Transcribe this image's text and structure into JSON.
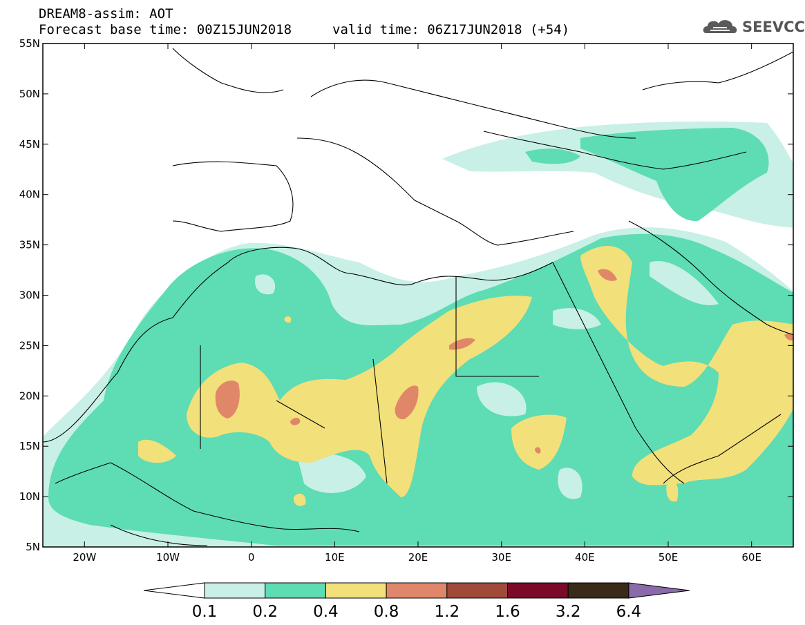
{
  "header": {
    "title_line1": "DREAM8-assim: AOT",
    "title_line2_base": "Forecast base time: 00Z15JUN2018",
    "title_line2_valid": "valid time: 06Z17JUN2018 (+54)"
  },
  "logo": {
    "text": "SEEVCCC",
    "icon": "cloud-icon"
  },
  "map": {
    "lat_labels": [
      "55N",
      "50N",
      "45N",
      "40N",
      "35N",
      "30N",
      "25N",
      "20N",
      "15N",
      "10N",
      "5N"
    ],
    "lon_labels": [
      "20W",
      "10W",
      "0",
      "10E",
      "20E",
      "30E",
      "40E",
      "50E",
      "60E"
    ],
    "colors": {
      "c1": "#c8f0e6",
      "c2": "#5edcb4",
      "c3": "#f2e07a",
      "c4": "#e0876a",
      "c5": "#a04a3a",
      "c6": "#7a0a28",
      "c7": "#3a2a18",
      "c8": "#8a6aa8",
      "land_border": "#000000"
    }
  },
  "colorbar": {
    "labels": [
      "0.1",
      "0.2",
      "0.4",
      "0.8",
      "1.2",
      "1.6",
      "3.2",
      "6.4"
    ],
    "colors": [
      "#ffffff",
      "#c8f0e6",
      "#5edcb4",
      "#f2e07a",
      "#e0876a",
      "#a04a3a",
      "#7a0a28",
      "#3a2a18",
      "#8a6aa8"
    ]
  }
}
